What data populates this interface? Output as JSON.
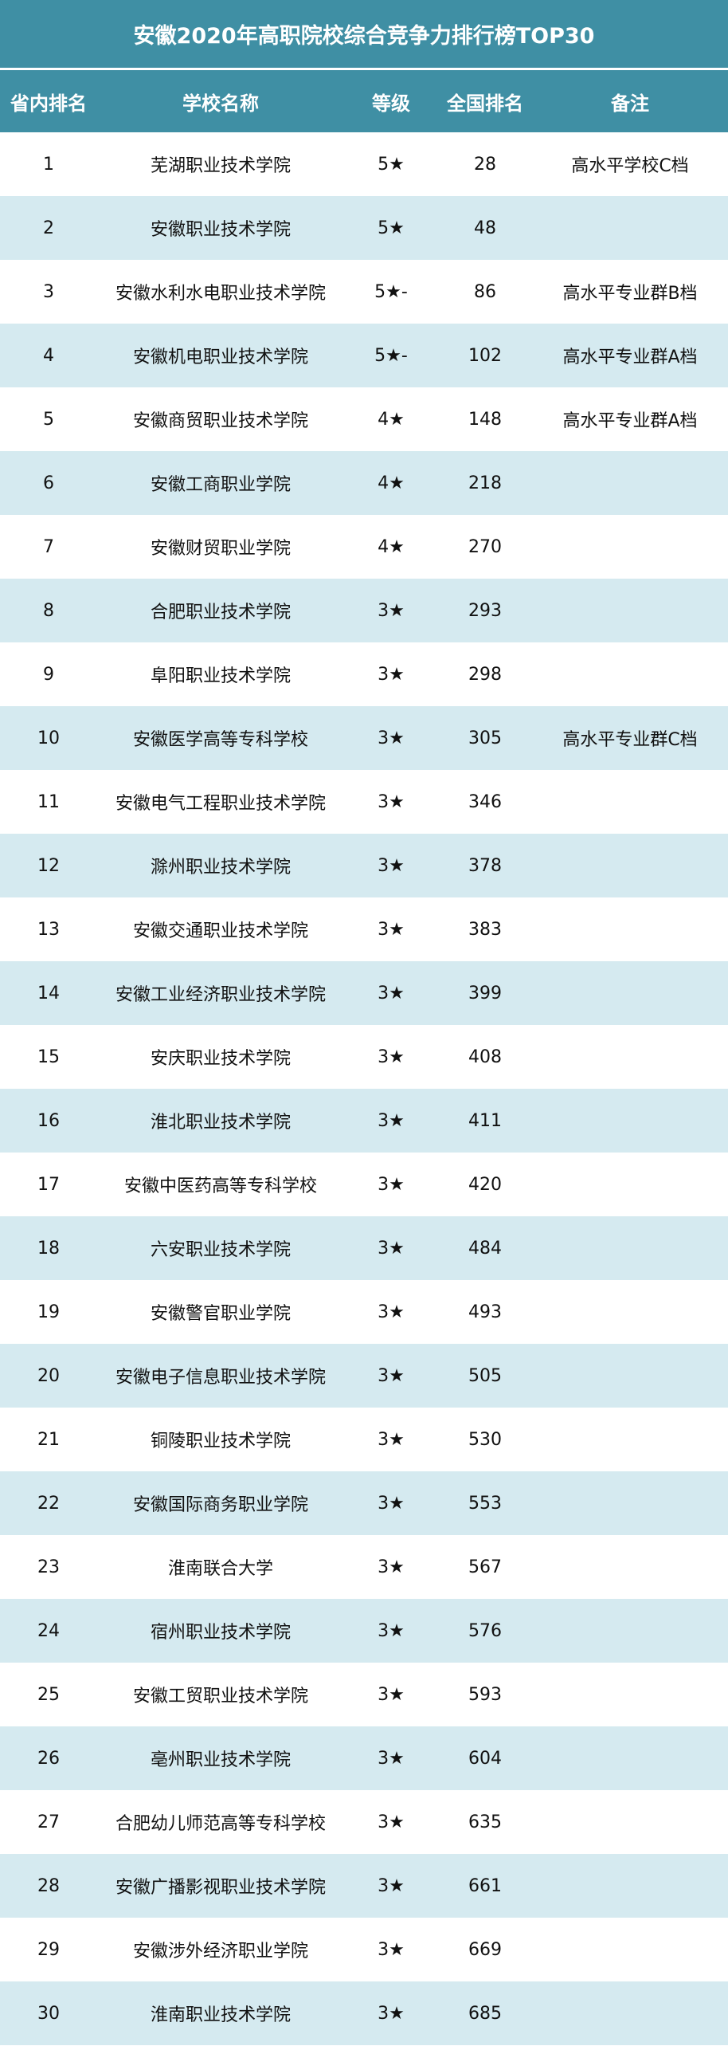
{
  "title": "安徽2020年高职院校综合竞争力排行榜TOP30",
  "colors": {
    "header_bg": "#3f8fa4",
    "alt_row_bg": "#d5eaf0"
  },
  "columns": [
    "省内排名",
    "学校名称",
    "等级",
    "全国排名",
    "备注"
  ],
  "rows": [
    [
      "1",
      "芜湖职业技术学院",
      "5★",
      "28",
      "高水平学校C档"
    ],
    [
      "2",
      "安徽职业技术学院",
      "5★",
      "48",
      ""
    ],
    [
      "3",
      "安徽水利水电职业技术学院",
      "5★-",
      "86",
      "高水平专业群B档"
    ],
    [
      "4",
      "安徽机电职业技术学院",
      "5★-",
      "102",
      "高水平专业群A档"
    ],
    [
      "5",
      "安徽商贸职业技术学院",
      "4★",
      "148",
      "高水平专业群A档"
    ],
    [
      "6",
      "安徽工商职业学院",
      "4★",
      "218",
      ""
    ],
    [
      "7",
      "安徽财贸职业学院",
      "4★",
      "270",
      ""
    ],
    [
      "8",
      "合肥职业技术学院",
      "3★",
      "293",
      ""
    ],
    [
      "9",
      "阜阳职业技术学院",
      "3★",
      "298",
      ""
    ],
    [
      "10",
      "安徽医学高等专科学校",
      "3★",
      "305",
      "高水平专业群C档"
    ],
    [
      "11",
      "安徽电气工程职业技术学院",
      "3★",
      "346",
      ""
    ],
    [
      "12",
      "滁州职业技术学院",
      "3★",
      "378",
      ""
    ],
    [
      "13",
      "安徽交通职业技术学院",
      "3★",
      "383",
      ""
    ],
    [
      "14",
      "安徽工业经济职业技术学院",
      "3★",
      "399",
      ""
    ],
    [
      "15",
      "安庆职业技术学院",
      "3★",
      "408",
      ""
    ],
    [
      "16",
      "淮北职业技术学院",
      "3★",
      "411",
      ""
    ],
    [
      "17",
      "安徽中医药高等专科学校",
      "3★",
      "420",
      ""
    ],
    [
      "18",
      "六安职业技术学院",
      "3★",
      "484",
      ""
    ],
    [
      "19",
      "安徽警官职业学院",
      "3★",
      "493",
      ""
    ],
    [
      "20",
      "安徽电子信息职业技术学院",
      "3★",
      "505",
      ""
    ],
    [
      "21",
      "铜陵职业技术学院",
      "3★",
      "530",
      ""
    ],
    [
      "22",
      "安徽国际商务职业学院",
      "3★",
      "553",
      ""
    ],
    [
      "23",
      "淮南联合大学",
      "3★",
      "567",
      ""
    ],
    [
      "24",
      "宿州职业技术学院",
      "3★",
      "576",
      ""
    ],
    [
      "25",
      "安徽工贸职业技术学院",
      "3★",
      "593",
      ""
    ],
    [
      "26",
      "亳州职业技术学院",
      "3★",
      "604",
      ""
    ],
    [
      "27",
      "合肥幼儿师范高等专科学校",
      "3★",
      "635",
      ""
    ],
    [
      "28",
      "安徽广播影视职业技术学院",
      "3★",
      "661",
      ""
    ],
    [
      "29",
      "安徽涉外经济职业学院",
      "3★",
      "669",
      ""
    ],
    [
      "30",
      "淮南职业技术学院",
      "3★",
      "685",
      ""
    ]
  ]
}
